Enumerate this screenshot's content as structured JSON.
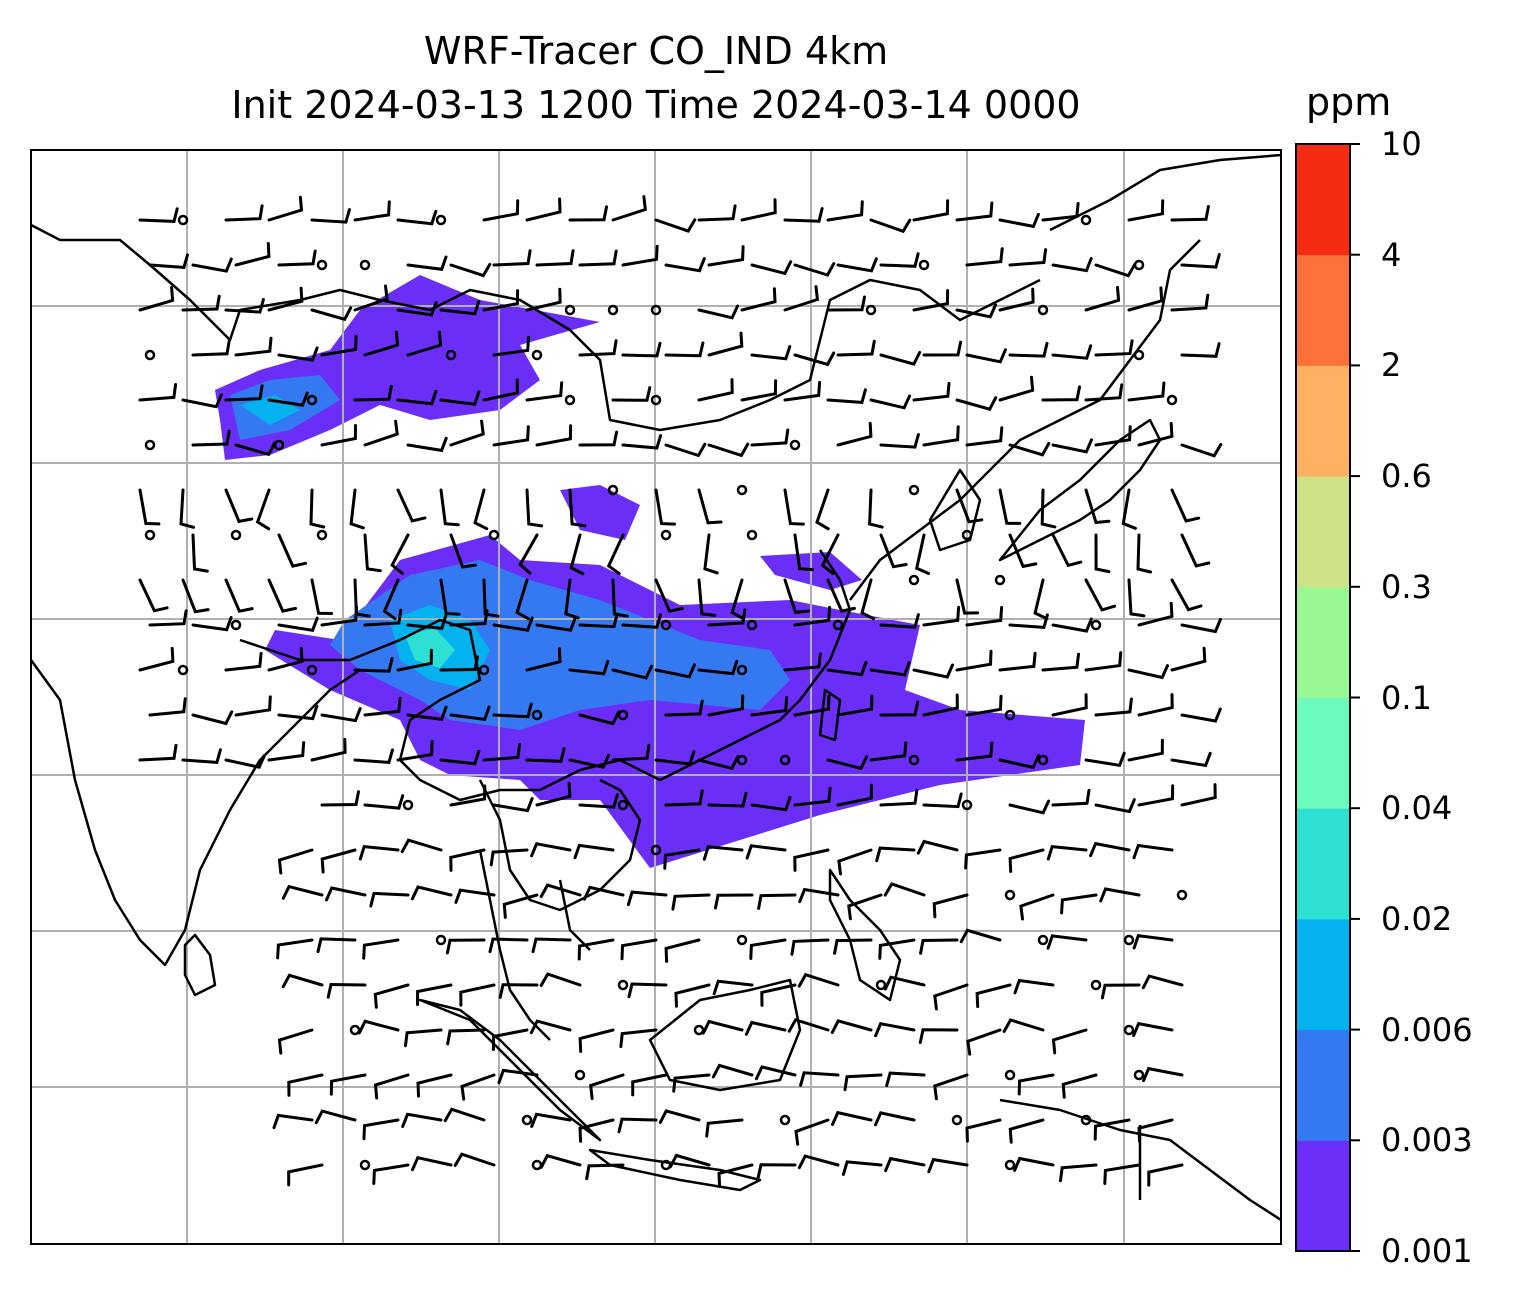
{
  "title": {
    "line1": "WRF-Tracer CO_IND 4km",
    "line2": "Init 2024-03-13 1200 Time 2024-03-14 0000"
  },
  "colorbar": {
    "unit": "ppm",
    "levels": [
      "0.001",
      "0.003",
      "0.006",
      "0.02",
      "0.04",
      "0.1",
      "0.3",
      "0.6",
      "2",
      "4",
      "10"
    ],
    "colors": [
      "#6a2ef6",
      "#3479f1",
      "#03b2ee",
      "#2de0d3",
      "#6cfbbd",
      "#9af894",
      "#cee186",
      "#fdb161",
      "#fc723a",
      "#f62b14"
    ]
  },
  "map": {
    "background": "#ffffff",
    "gridline_color": "#b0b0b0",
    "coastline_color": "#000000",
    "wind_barb_color": "#000000"
  }
}
